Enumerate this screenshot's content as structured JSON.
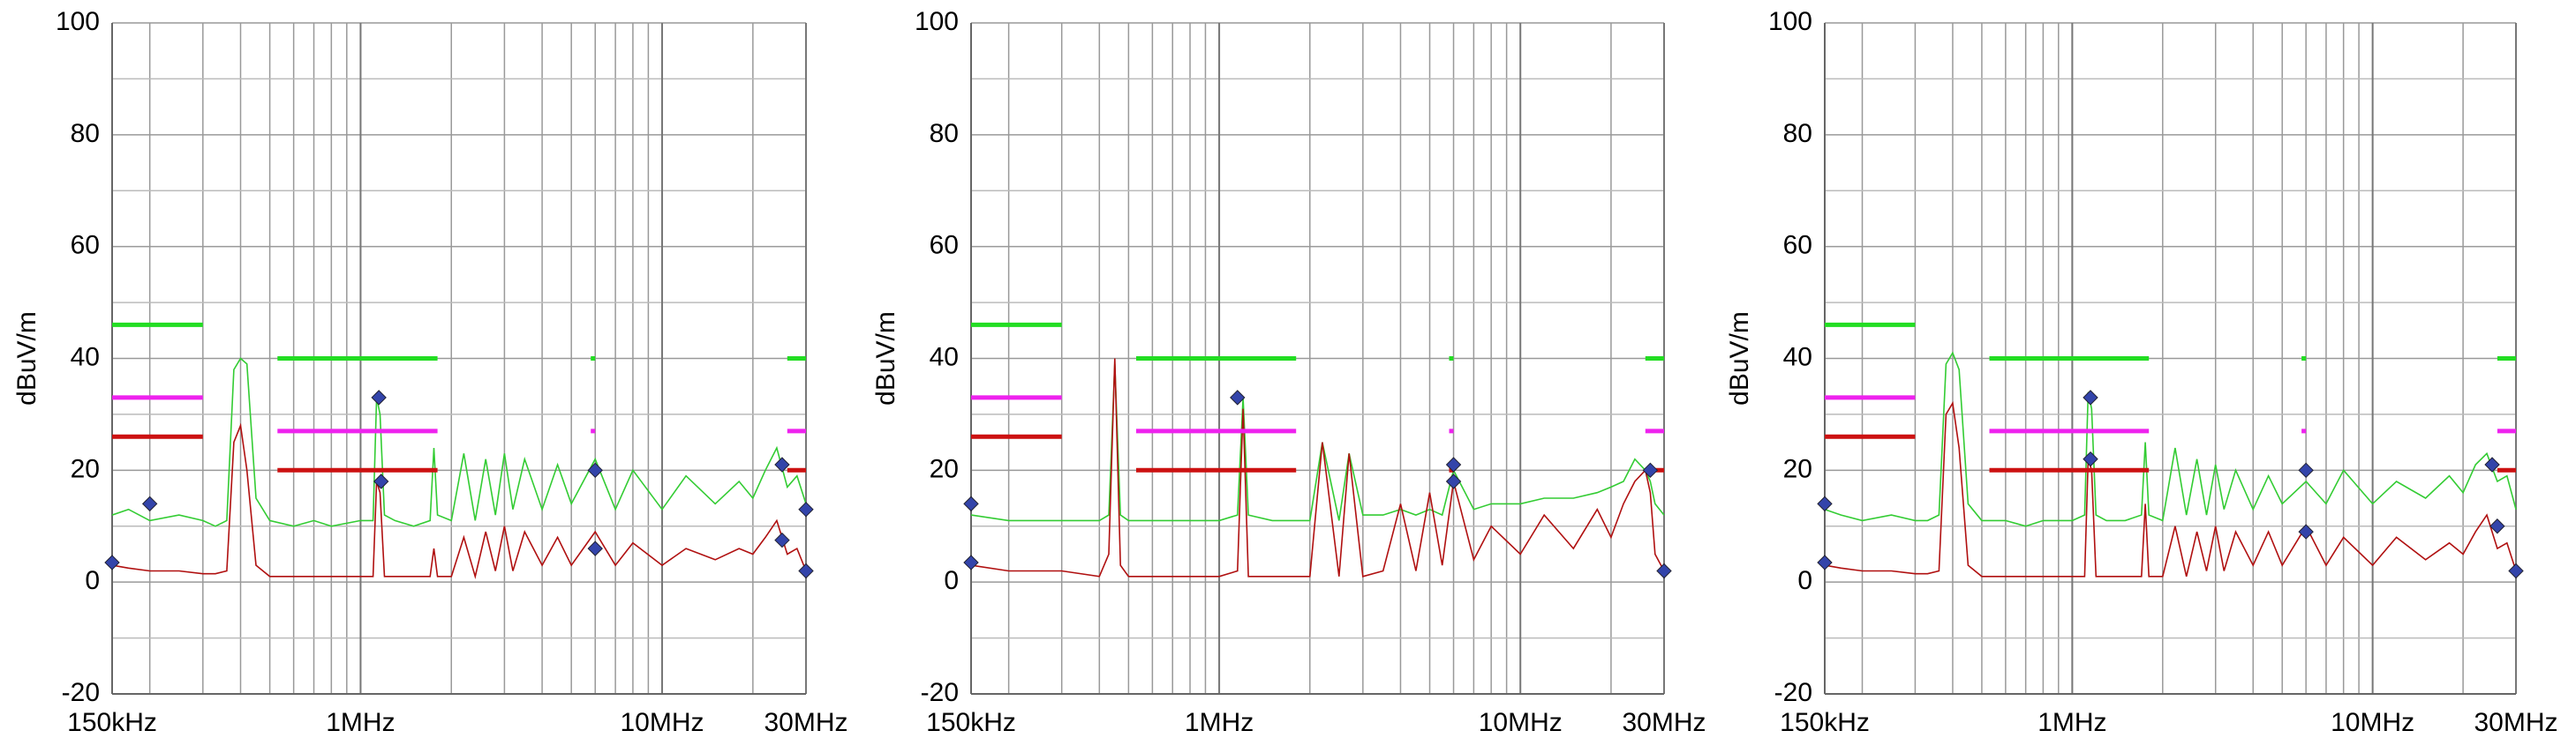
{
  "chart_data": [
    {
      "type": "line",
      "ylabel": "dBuV/m",
      "xscale": "log",
      "grid": true,
      "xlim": [
        0.15,
        30
      ],
      "xticks": [
        {
          "value": 0.15,
          "label": "150kHz"
        },
        {
          "value": 1,
          "label": "1MHz"
        },
        {
          "value": 10,
          "label": "10MHz"
        },
        {
          "value": 30,
          "label": "30MHz"
        }
      ],
      "ylim": [
        -20,
        100
      ],
      "yticks": [
        -20,
        0,
        20,
        40,
        60,
        80,
        100
      ],
      "series": [
        {
          "style": "trace",
          "color": "#33cc33",
          "x": [
            0.15,
            0.17,
            0.2,
            0.25,
            0.3,
            0.33,
            0.36,
            0.38,
            0.4,
            0.42,
            0.45,
            0.5,
            0.6,
            0.7,
            0.8,
            1.0,
            1.1,
            1.13,
            1.16,
            1.2,
            1.3,
            1.5,
            1.7,
            1.75,
            1.8,
            2.0,
            2.2,
            2.4,
            2.6,
            2.8,
            3.0,
            3.2,
            3.5,
            4,
            4.5,
            5,
            6,
            7,
            8,
            10,
            12,
            15,
            18,
            20,
            22,
            24,
            26,
            28,
            30
          ],
          "values": [
            12,
            13,
            11,
            12,
            11,
            10,
            11,
            38,
            40,
            39,
            15,
            11,
            10,
            11,
            10,
            11,
            11,
            33,
            30,
            12,
            11,
            10,
            11,
            24,
            12,
            11,
            23,
            11,
            22,
            12,
            23,
            13,
            22,
            13,
            21,
            14,
            22,
            13,
            20,
            13,
            19,
            14,
            18,
            15,
            20,
            24,
            17,
            19,
            14
          ]
        },
        {
          "style": "trace",
          "color": "#b01010",
          "x": [
            0.15,
            0.17,
            0.2,
            0.25,
            0.3,
            0.33,
            0.36,
            0.38,
            0.4,
            0.42,
            0.45,
            0.5,
            0.6,
            0.7,
            0.8,
            1.0,
            1.1,
            1.13,
            1.16,
            1.2,
            1.3,
            1.5,
            1.7,
            1.75,
            1.8,
            2.0,
            2.2,
            2.4,
            2.6,
            2.8,
            3.0,
            3.2,
            3.5,
            4,
            4.5,
            5,
            6,
            7,
            8,
            10,
            12,
            15,
            18,
            20,
            22,
            24,
            26,
            28,
            30
          ],
          "values": [
            3,
            2.5,
            2,
            2,
            1.5,
            1.5,
            2,
            25,
            28,
            20,
            3,
            1,
            1,
            1,
            1,
            1,
            1,
            18,
            16,
            1,
            1,
            1,
            1,
            6,
            1,
            1,
            8,
            1,
            9,
            2,
            10,
            2,
            9,
            3,
            8,
            3,
            9,
            3,
            7,
            3,
            6,
            4,
            6,
            5,
            8,
            11,
            5,
            6,
            2
          ]
        },
        {
          "style": "limit",
          "color": "#22dd22",
          "x": [
            0.15,
            0.3,
            0.3,
            0.53,
            1.8,
            1.8,
            5.8,
            6.0,
            6.0,
            26,
            30
          ],
          "values": [
            46,
            46,
            null,
            40,
            40,
            null,
            40,
            40,
            null,
            40,
            40
          ]
        },
        {
          "style": "limit",
          "color": "#ee22ee",
          "x": [
            0.15,
            0.3,
            0.3,
            0.53,
            1.8,
            1.8,
            5.8,
            6.0,
            6.0,
            26,
            30
          ],
          "values": [
            33,
            33,
            null,
            27,
            27,
            null,
            27,
            27,
            null,
            27,
            27
          ]
        },
        {
          "style": "limit",
          "color": "#cc1111",
          "x": [
            0.15,
            0.3,
            0.3,
            0.53,
            1.8,
            1.8,
            5.8,
            6.0,
            6.0,
            26,
            30
          ],
          "values": [
            26,
            26,
            null,
            20,
            20,
            null,
            20,
            20,
            null,
            20,
            20
          ]
        },
        {
          "style": "marker",
          "color": "#3344aa",
          "x": [
            0.15,
            0.2,
            1.15,
            1.17,
            6,
            6,
            25,
            25,
            30,
            30
          ],
          "values": [
            3.5,
            14,
            33,
            18,
            20,
            6,
            21,
            7.5,
            13,
            2
          ]
        }
      ]
    },
    {
      "type": "line",
      "ylabel": "dBuV/m",
      "xscale": "log",
      "grid": true,
      "xlim": [
        0.15,
        30
      ],
      "xticks": [
        {
          "value": 0.15,
          "label": "150kHz"
        },
        {
          "value": 1,
          "label": "1MHz"
        },
        {
          "value": 10,
          "label": "10MHz"
        },
        {
          "value": 30,
          "label": "30MHz"
        }
      ],
      "ylim": [
        -20,
        100
      ],
      "yticks": [
        -20,
        0,
        20,
        40,
        60,
        80,
        100
      ],
      "series": [
        {
          "style": "trace",
          "color": "#33cc33",
          "x": [
            0.15,
            0.2,
            0.3,
            0.4,
            0.43,
            0.45,
            0.47,
            0.5,
            0.7,
            1.0,
            1.15,
            1.2,
            1.25,
            1.5,
            2.0,
            2.2,
            2.5,
            2.7,
            3.0,
            3.5,
            4,
            4.5,
            5,
            5.5,
            6,
            7,
            8,
            10,
            12,
            15,
            18,
            20,
            22,
            24,
            26,
            27,
            28,
            30
          ],
          "values": [
            12,
            11,
            11,
            11,
            12,
            39,
            12,
            11,
            11,
            11,
            12,
            33,
            12,
            11,
            11,
            25,
            11,
            23,
            12,
            12,
            13,
            12,
            13,
            12,
            20,
            13,
            14,
            14,
            15,
            15,
            16,
            17,
            18,
            22,
            20,
            18,
            14,
            12
          ]
        },
        {
          "style": "trace",
          "color": "#b01010",
          "x": [
            0.15,
            0.2,
            0.3,
            0.4,
            0.43,
            0.45,
            0.47,
            0.5,
            0.7,
            1.0,
            1.15,
            1.2,
            1.25,
            1.5,
            2.0,
            2.2,
            2.5,
            2.7,
            3.0,
            3.5,
            4,
            4.5,
            5,
            5.5,
            6,
            7,
            8,
            10,
            12,
            15,
            18,
            20,
            22,
            24,
            26,
            27,
            28,
            30
          ],
          "values": [
            3,
            2,
            2,
            1,
            5,
            40,
            3,
            1,
            1,
            1,
            2,
            31,
            1,
            1,
            1,
            25,
            1,
            23,
            1,
            2,
            14,
            2,
            16,
            3,
            18,
            4,
            10,
            5,
            12,
            6,
            13,
            8,
            14,
            18,
            20,
            16,
            5,
            2
          ]
        },
        {
          "style": "limit",
          "color": "#22dd22",
          "x": [
            0.15,
            0.3,
            0.3,
            0.53,
            1.8,
            1.8,
            5.8,
            6.0,
            6.0,
            26,
            30
          ],
          "values": [
            46,
            46,
            null,
            40,
            40,
            null,
            40,
            40,
            null,
            40,
            40
          ]
        },
        {
          "style": "limit",
          "color": "#ee22ee",
          "x": [
            0.15,
            0.3,
            0.3,
            0.53,
            1.8,
            1.8,
            5.8,
            6.0,
            6.0,
            26,
            30
          ],
          "values": [
            33,
            33,
            null,
            27,
            27,
            null,
            27,
            27,
            null,
            27,
            27
          ]
        },
        {
          "style": "limit",
          "color": "#cc1111",
          "x": [
            0.15,
            0.3,
            0.3,
            0.53,
            1.8,
            1.8,
            5.8,
            6.0,
            6.0,
            26,
            30
          ],
          "values": [
            26,
            26,
            null,
            20,
            20,
            null,
            20,
            20,
            null,
            20,
            20
          ]
        },
        {
          "style": "marker",
          "color": "#3344aa",
          "x": [
            0.15,
            0.15,
            1.15,
            6,
            6,
            27,
            30
          ],
          "values": [
            3.5,
            14,
            33,
            21,
            18,
            20,
            2
          ]
        }
      ]
    },
    {
      "type": "line",
      "ylabel": "dBuV/m",
      "xscale": "log",
      "grid": true,
      "xlim": [
        0.15,
        30
      ],
      "xticks": [
        {
          "value": 0.15,
          "label": "150kHz"
        },
        {
          "value": 1,
          "label": "1MHz"
        },
        {
          "value": 10,
          "label": "10MHz"
        },
        {
          "value": 30,
          "label": "30MHz"
        }
      ],
      "ylim": [
        -20,
        100
      ],
      "yticks": [
        -20,
        0,
        20,
        40,
        60,
        80,
        100
      ],
      "series": [
        {
          "style": "trace",
          "color": "#33cc33",
          "x": [
            0.15,
            0.17,
            0.2,
            0.25,
            0.3,
            0.33,
            0.36,
            0.38,
            0.4,
            0.42,
            0.45,
            0.5,
            0.6,
            0.7,
            0.8,
            1.0,
            1.1,
            1.13,
            1.16,
            1.2,
            1.3,
            1.5,
            1.7,
            1.75,
            1.8,
            2.0,
            2.2,
            2.4,
            2.6,
            2.8,
            3.0,
            3.2,
            3.5,
            4,
            4.5,
            5,
            6,
            7,
            8,
            10,
            12,
            15,
            18,
            20,
            22,
            24,
            26,
            28,
            30
          ],
          "values": [
            13,
            12,
            11,
            12,
            11,
            11,
            12,
            39,
            41,
            38,
            14,
            11,
            11,
            10,
            11,
            11,
            12,
            34,
            31,
            12,
            11,
            11,
            12,
            25,
            12,
            11,
            24,
            12,
            22,
            12,
            21,
            13,
            20,
            13,
            19,
            14,
            18,
            14,
            20,
            14,
            18,
            15,
            19,
            16,
            21,
            23,
            18,
            19,
            13
          ]
        },
        {
          "style": "trace",
          "color": "#b01010",
          "x": [
            0.15,
            0.17,
            0.2,
            0.25,
            0.3,
            0.33,
            0.36,
            0.38,
            0.4,
            0.42,
            0.45,
            0.5,
            0.6,
            0.7,
            0.8,
            1.0,
            1.1,
            1.13,
            1.16,
            1.2,
            1.3,
            1.5,
            1.7,
            1.75,
            1.8,
            2.0,
            2.2,
            2.4,
            2.6,
            2.8,
            3.0,
            3.2,
            3.5,
            4,
            4.5,
            5,
            6,
            7,
            8,
            10,
            12,
            15,
            18,
            20,
            22,
            24,
            26,
            28,
            30
          ],
          "values": [
            3,
            2.5,
            2,
            2,
            1.5,
            1.5,
            2,
            30,
            32,
            24,
            3,
            1,
            1,
            1,
            1,
            1,
            1,
            22,
            20,
            1,
            1,
            1,
            1,
            14,
            1,
            1,
            10,
            1,
            9,
            2,
            10,
            2,
            9,
            3,
            9,
            3,
            10,
            3,
            8,
            3,
            8,
            4,
            7,
            5,
            9,
            12,
            6,
            7,
            2
          ]
        },
        {
          "style": "limit",
          "color": "#22dd22",
          "x": [
            0.15,
            0.3,
            0.3,
            0.53,
            1.8,
            1.8,
            5.8,
            6.0,
            6.0,
            26,
            30
          ],
          "values": [
            46,
            46,
            null,
            40,
            40,
            null,
            40,
            40,
            null,
            40,
            40
          ]
        },
        {
          "style": "limit",
          "color": "#ee22ee",
          "x": [
            0.15,
            0.3,
            0.3,
            0.53,
            1.8,
            1.8,
            5.8,
            6.0,
            6.0,
            26,
            30
          ],
          "values": [
            33,
            33,
            null,
            27,
            27,
            null,
            27,
            27,
            null,
            27,
            27
          ]
        },
        {
          "style": "limit",
          "color": "#cc1111",
          "x": [
            0.15,
            0.3,
            0.3,
            0.53,
            1.8,
            1.8,
            5.8,
            6.0,
            6.0,
            26,
            30
          ],
          "values": [
            26,
            26,
            null,
            20,
            20,
            null,
            20,
            20,
            null,
            20,
            20
          ]
        },
        {
          "style": "marker",
          "color": "#3344aa",
          "x": [
            0.15,
            0.15,
            1.15,
            1.15,
            6,
            6,
            25,
            26,
            30
          ],
          "values": [
            3.5,
            14,
            33,
            22,
            20,
            9,
            21,
            10,
            2
          ]
        }
      ]
    }
  ]
}
